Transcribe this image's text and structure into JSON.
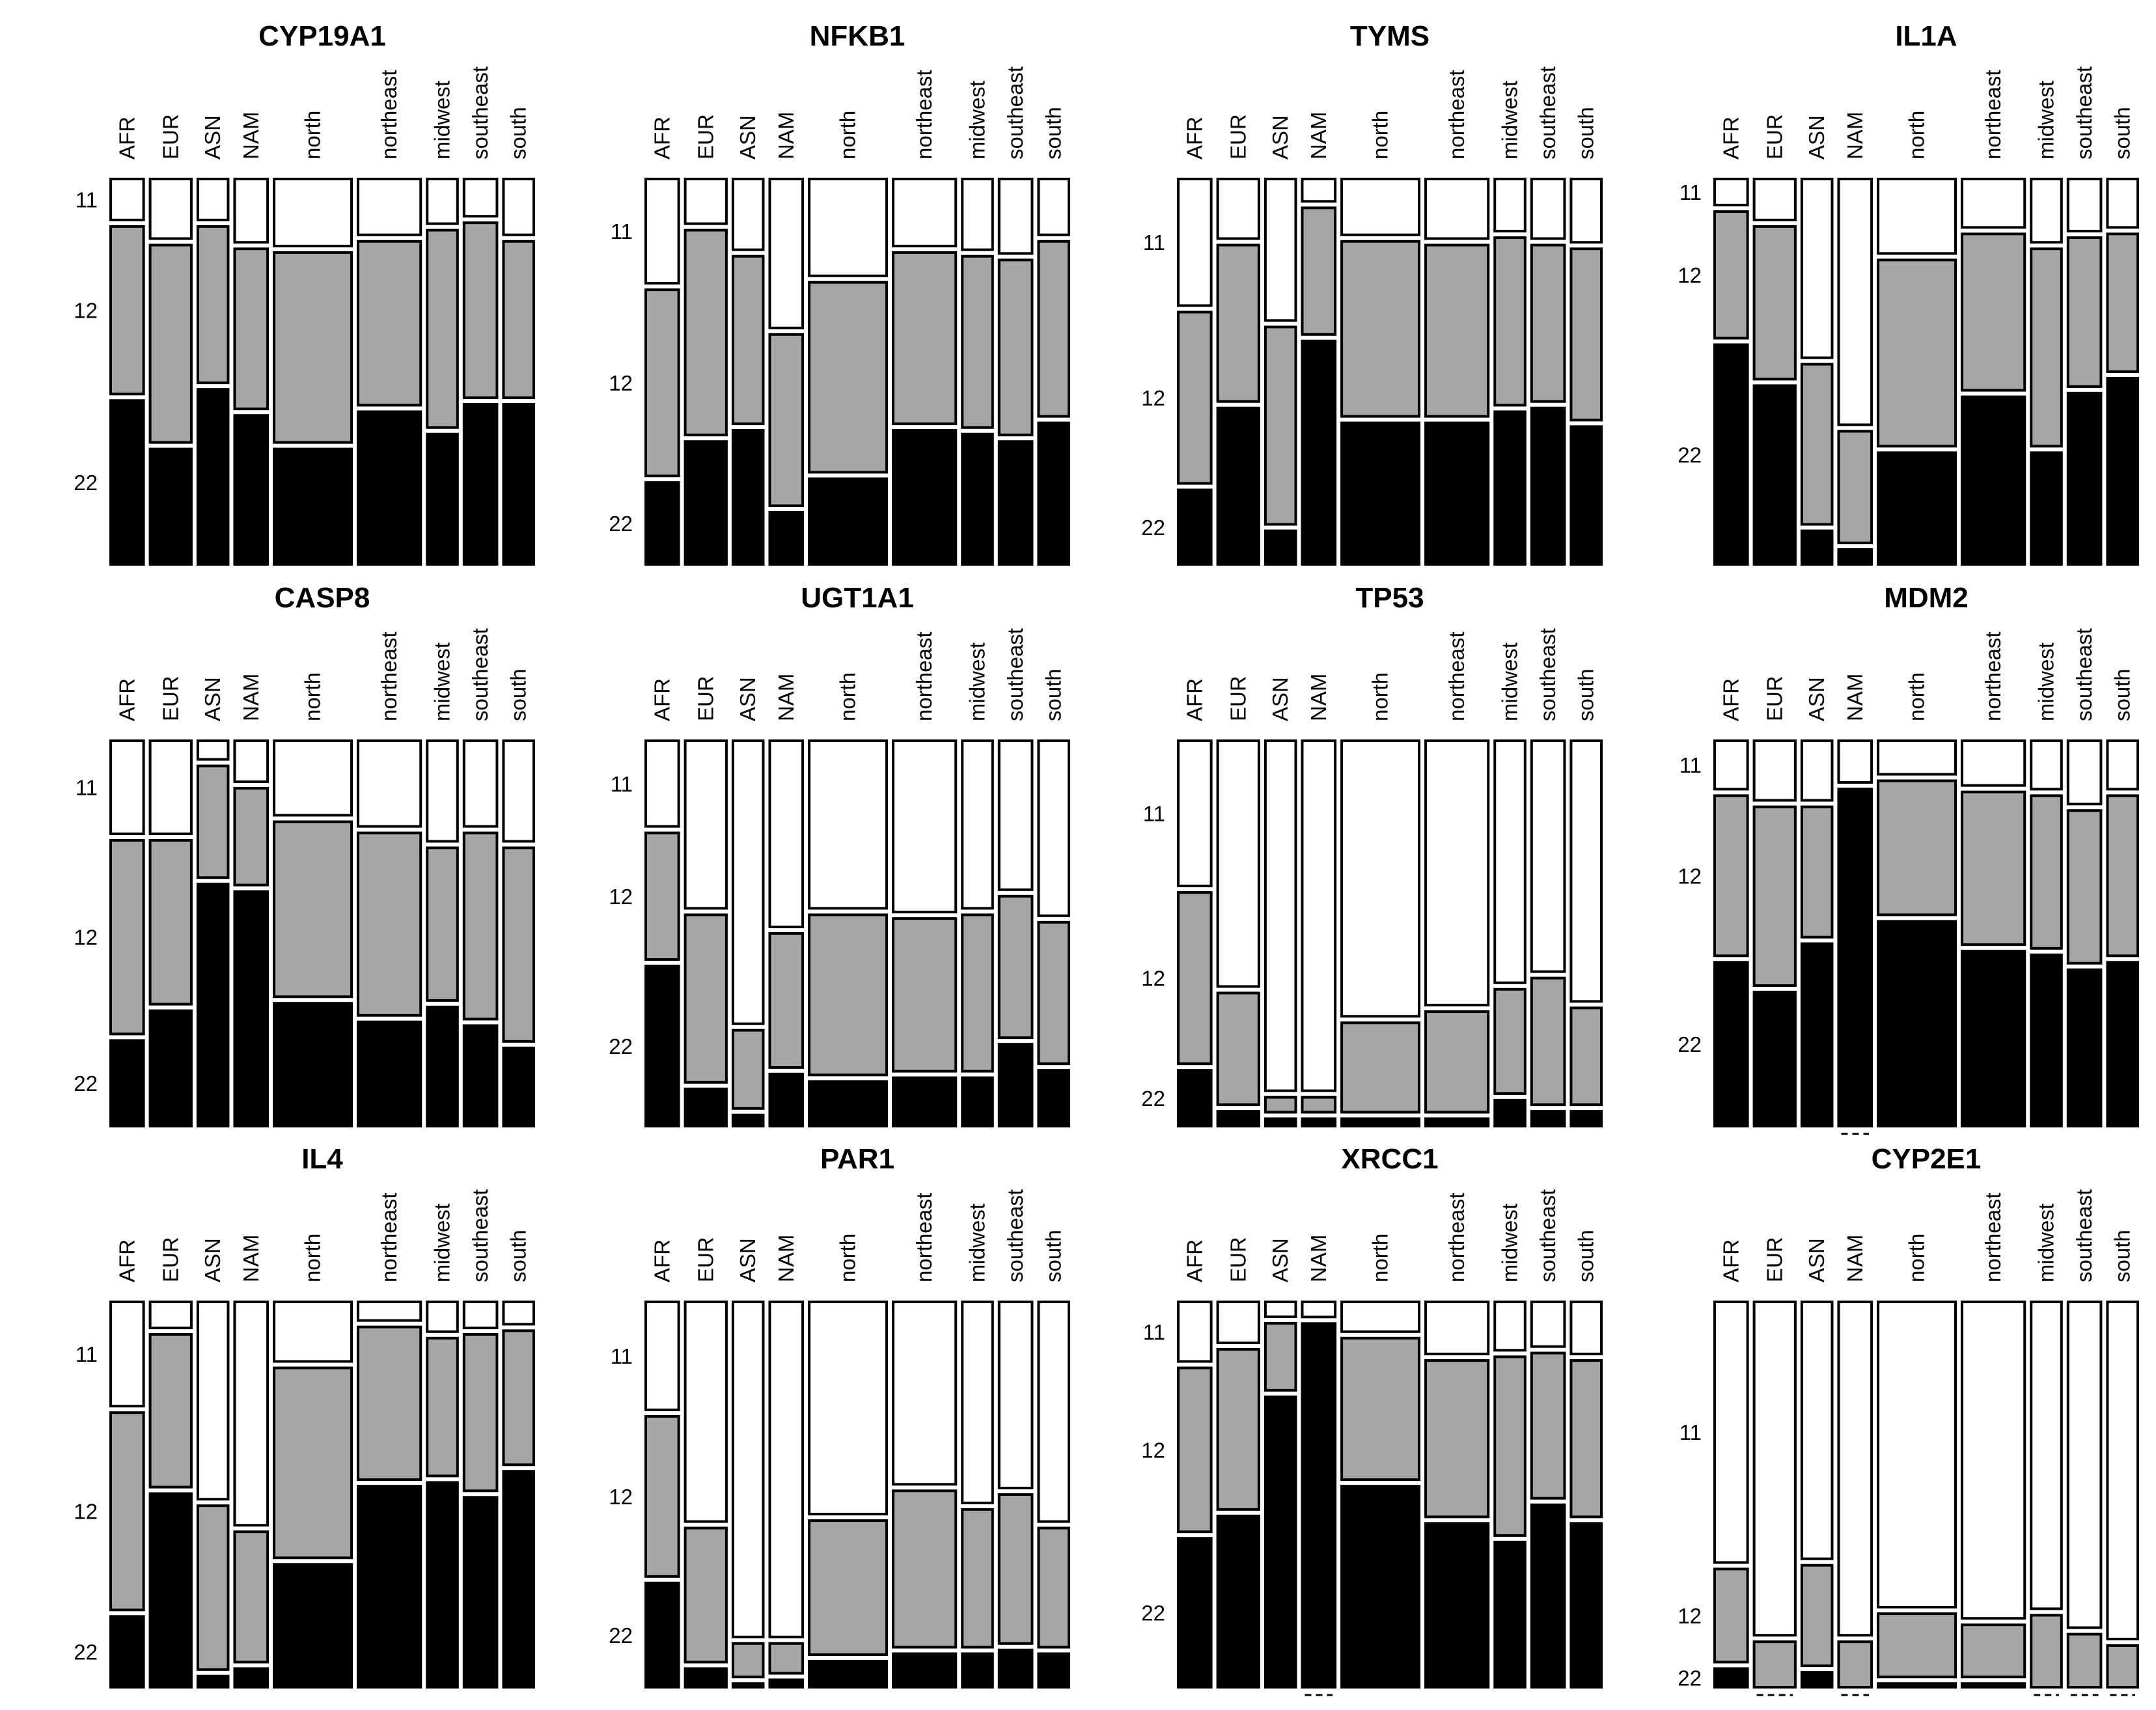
{
  "chart_data": {
    "type": "mosaic",
    "description_of_values": "For each gene panel: column widths are relative sample sizes per population; segment values are genotype proportions (top=11, middle=12, bottom=22).",
    "genotype_order": [
      "11",
      "12",
      "22"
    ],
    "colors": {
      "11": "#ffffff",
      "12": "#a6a6a6",
      "22": "#000000"
    },
    "categories": [
      "AFR",
      "EUR",
      "ASN",
      "NAM",
      "north",
      "northeast",
      "midwest",
      "southeast",
      "south"
    ],
    "column_widths": [
      1.0,
      1.25,
      0.92,
      1.0,
      2.35,
      1.9,
      0.92,
      1.0,
      0.92
    ],
    "panels": [
      {
        "title": "CYP19A1",
        "ytick_labels": [
          "11",
          "12",
          "22"
        ],
        "values": [
          [
            0.11,
            0.45,
            0.44
          ],
          [
            0.16,
            0.53,
            0.31
          ],
          [
            0.11,
            0.42,
            0.47
          ],
          [
            0.17,
            0.43,
            0.4
          ],
          [
            0.18,
            0.51,
            0.31
          ],
          [
            0.15,
            0.44,
            0.41
          ],
          [
            0.12,
            0.53,
            0.35
          ],
          [
            0.1,
            0.47,
            0.43
          ],
          [
            0.15,
            0.42,
            0.43
          ]
        ]
      },
      {
        "title": "NFKB1",
        "ytick_labels": [
          "11",
          "12",
          "22"
        ],
        "values": [
          [
            0.28,
            0.5,
            0.22
          ],
          [
            0.12,
            0.55,
            0.33
          ],
          [
            0.19,
            0.45,
            0.36
          ],
          [
            0.4,
            0.46,
            0.14
          ],
          [
            0.26,
            0.51,
            0.23
          ],
          [
            0.18,
            0.46,
            0.36
          ],
          [
            0.19,
            0.46,
            0.35
          ],
          [
            0.2,
            0.47,
            0.33
          ],
          [
            0.15,
            0.47,
            0.38
          ]
        ]
      },
      {
        "title": "TYMS",
        "ytick_labels": [
          "11",
          "12",
          "22"
        ],
        "values": [
          [
            0.34,
            0.46,
            0.2
          ],
          [
            0.16,
            0.42,
            0.42
          ],
          [
            0.38,
            0.53,
            0.09
          ],
          [
            0.06,
            0.34,
            0.6
          ],
          [
            0.15,
            0.47,
            0.38
          ],
          [
            0.16,
            0.46,
            0.38
          ],
          [
            0.14,
            0.45,
            0.41
          ],
          [
            0.16,
            0.42,
            0.42
          ],
          [
            0.17,
            0.46,
            0.37
          ]
        ]
      },
      {
        "title": "IL1A",
        "ytick_labels": [
          "11",
          "12",
          "22"
        ],
        "values": [
          [
            0.07,
            0.34,
            0.59
          ],
          [
            0.11,
            0.41,
            0.48
          ],
          [
            0.48,
            0.43,
            0.09
          ],
          [
            0.66,
            0.3,
            0.04
          ],
          [
            0.2,
            0.5,
            0.3
          ],
          [
            0.13,
            0.42,
            0.45
          ],
          [
            0.17,
            0.53,
            0.3
          ],
          [
            0.14,
            0.4,
            0.46
          ],
          [
            0.13,
            0.37,
            0.5
          ]
        ]
      },
      {
        "title": "CASP8",
        "ytick_labels": [
          "11",
          "12",
          "22"
        ],
        "values": [
          [
            0.25,
            0.52,
            0.23
          ],
          [
            0.25,
            0.44,
            0.31
          ],
          [
            0.05,
            0.3,
            0.65
          ],
          [
            0.11,
            0.26,
            0.63
          ],
          [
            0.2,
            0.47,
            0.33
          ],
          [
            0.23,
            0.49,
            0.28
          ],
          [
            0.27,
            0.41,
            0.32
          ],
          [
            0.23,
            0.5,
            0.27
          ],
          [
            0.27,
            0.52,
            0.21
          ]
        ]
      },
      {
        "title": "UGT1A1",
        "ytick_labels": [
          "11",
          "12",
          "22"
        ],
        "values": [
          [
            0.23,
            0.34,
            0.43
          ],
          [
            0.45,
            0.45,
            0.1
          ],
          [
            0.76,
            0.21,
            0.03
          ],
          [
            0.5,
            0.36,
            0.14
          ],
          [
            0.45,
            0.43,
            0.12
          ],
          [
            0.46,
            0.41,
            0.13
          ],
          [
            0.45,
            0.42,
            0.13
          ],
          [
            0.4,
            0.38,
            0.22
          ],
          [
            0.47,
            0.38,
            0.15
          ]
        ]
      },
      {
        "title": "TP53",
        "ytick_labels": [
          "11",
          "12",
          "22"
        ],
        "values": [
          [
            0.39,
            0.46,
            0.15
          ],
          [
            0.66,
            0.3,
            0.04
          ],
          [
            0.94,
            0.04,
            0.02
          ],
          [
            0.94,
            0.04,
            0.02
          ],
          [
            0.74,
            0.24,
            0.02
          ],
          [
            0.71,
            0.27,
            0.02
          ],
          [
            0.65,
            0.28,
            0.07
          ],
          [
            0.62,
            0.34,
            0.04
          ],
          [
            0.7,
            0.26,
            0.04
          ]
        ]
      },
      {
        "title": "MDM2",
        "ytick_labels": [
          "11",
          "12",
          "22"
        ],
        "values": [
          [
            0.13,
            0.43,
            0.44
          ],
          [
            0.16,
            0.48,
            0.36
          ],
          [
            0.16,
            0.35,
            0.49
          ],
          [
            0.11,
            0.0,
            0.89
          ],
          [
            0.09,
            0.36,
            0.55
          ],
          [
            0.12,
            0.41,
            0.47
          ],
          [
            0.13,
            0.41,
            0.46
          ],
          [
            0.17,
            0.41,
            0.42
          ],
          [
            0.13,
            0.43,
            0.44
          ]
        ]
      },
      {
        "title": "IL4",
        "ytick_labels": [
          "11",
          "12",
          "22"
        ],
        "values": [
          [
            0.28,
            0.53,
            0.19
          ],
          [
            0.07,
            0.41,
            0.52
          ],
          [
            0.53,
            0.44,
            0.03
          ],
          [
            0.6,
            0.35,
            0.05
          ],
          [
            0.16,
            0.51,
            0.33
          ],
          [
            0.05,
            0.41,
            0.54
          ],
          [
            0.08,
            0.37,
            0.55
          ],
          [
            0.07,
            0.42,
            0.51
          ],
          [
            0.06,
            0.36,
            0.58
          ]
        ]
      },
      {
        "title": "PAR1",
        "ytick_labels": [
          "11",
          "12",
          "22"
        ],
        "values": [
          [
            0.29,
            0.43,
            0.28
          ],
          [
            0.59,
            0.36,
            0.05
          ],
          [
            0.9,
            0.09,
            0.01
          ],
          [
            0.9,
            0.08,
            0.02
          ],
          [
            0.57,
            0.36,
            0.07
          ],
          [
            0.49,
            0.42,
            0.09
          ],
          [
            0.54,
            0.37,
            0.09
          ],
          [
            0.5,
            0.4,
            0.1
          ],
          [
            0.59,
            0.32,
            0.09
          ]
        ]
      },
      {
        "title": "XRCC1",
        "ytick_labels": [
          "11",
          "12",
          "22"
        ],
        "values": [
          [
            0.16,
            0.44,
            0.4
          ],
          [
            0.11,
            0.43,
            0.46
          ],
          [
            0.04,
            0.18,
            0.78
          ],
          [
            0.04,
            0.0,
            0.96
          ],
          [
            0.08,
            0.38,
            0.54
          ],
          [
            0.14,
            0.42,
            0.44
          ],
          [
            0.13,
            0.48,
            0.39
          ],
          [
            0.12,
            0.39,
            0.49
          ],
          [
            0.14,
            0.42,
            0.44
          ]
        ]
      },
      {
        "title": "CYP2E1",
        "ytick_labels": [
          "11",
          "12",
          "22"
        ],
        "values": [
          [
            0.7,
            0.25,
            0.05
          ],
          [
            0.88,
            0.12,
            0.0
          ],
          [
            0.69,
            0.27,
            0.04
          ],
          [
            0.88,
            0.12,
            0.0
          ],
          [
            0.82,
            0.17,
            0.01
          ],
          [
            0.85,
            0.14,
            0.01
          ],
          [
            0.81,
            0.19,
            0.0
          ],
          [
            0.86,
            0.14,
            0.0
          ],
          [
            0.89,
            0.11,
            0.0
          ]
        ]
      }
    ]
  }
}
